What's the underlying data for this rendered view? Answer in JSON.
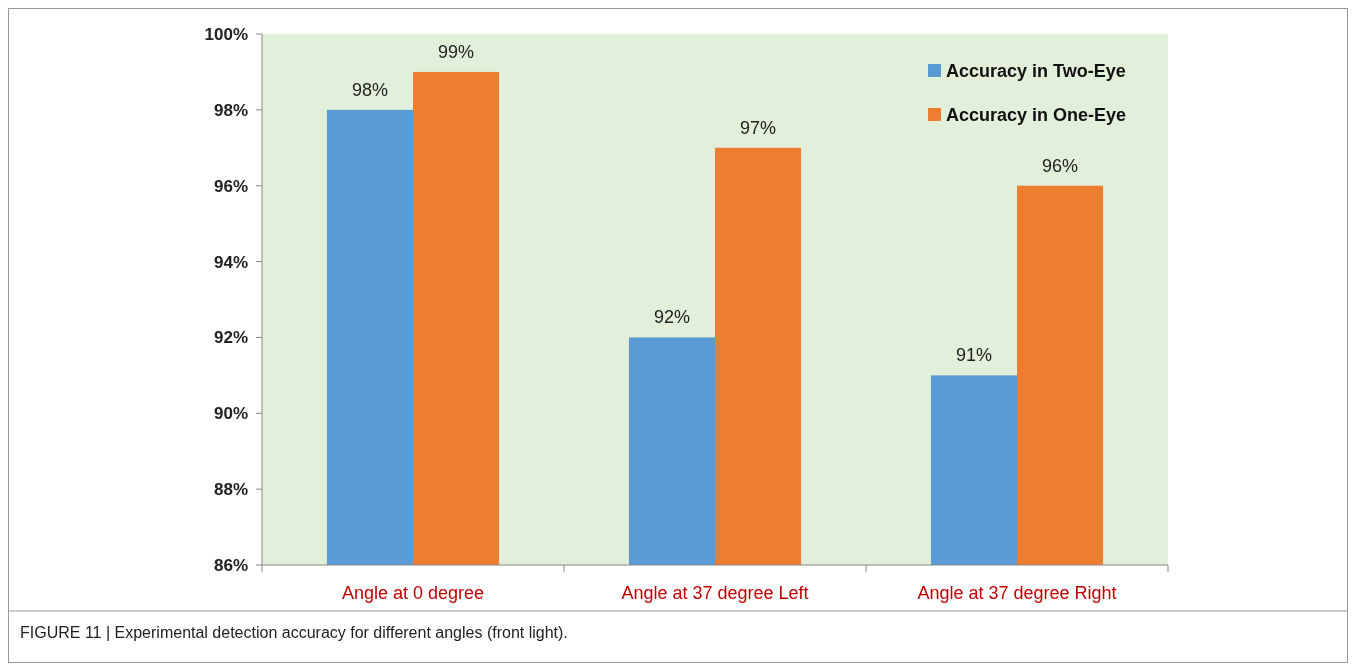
{
  "chart_data": {
    "type": "bar",
    "categories": [
      "Angle at 0 degree",
      "Angle at 37 degree Left",
      "Angle at 37 degree Right"
    ],
    "series": [
      {
        "name": "Accuracy in Two-Eye",
        "color": "#5b9bd5",
        "values": [
          98,
          92,
          91
        ],
        "value_labels": [
          "98%",
          "92%",
          "91%"
        ]
      },
      {
        "name": "Accuracy in One-Eye",
        "color": "#ed7d31",
        "values": [
          99,
          97,
          96
        ],
        "value_labels": [
          "99%",
          "97%",
          "96%"
        ]
      }
    ],
    "ylim": [
      86,
      100
    ],
    "yticks": [
      {
        "value": 86,
        "label": "86%"
      },
      {
        "value": 88,
        "label": "88%"
      },
      {
        "value": 90,
        "label": "90%"
      },
      {
        "value": 92,
        "label": "92%"
      },
      {
        "value": 94,
        "label": "94%"
      },
      {
        "value": 96,
        "label": "96%"
      },
      {
        "value": 98,
        "label": "98%"
      },
      {
        "value": 100,
        "label": "100%"
      }
    ],
    "grid": false,
    "legend": "top right",
    "annotations": [
      "FIGURE 11 | Experimental detection accuracy for different angles (front light)."
    ]
  }
}
